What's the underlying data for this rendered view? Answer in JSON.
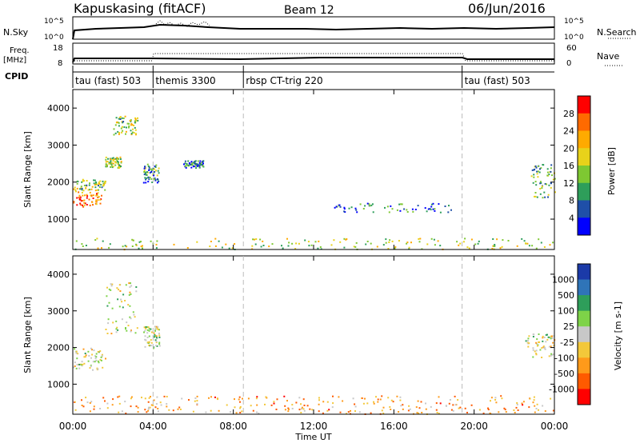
{
  "header": {
    "station": "Kapuskasing (fitACF)",
    "beam": "Beam 12",
    "date": "06/Jun/2016"
  },
  "left_labels": {
    "nsky": "N.Sky",
    "freq_line1": "Freq.",
    "freq_line2": "[MHz]",
    "cpid": "CPID"
  },
  "right_labels": {
    "nsearch": "N.Search",
    "nave": "Nave"
  },
  "noise_axis": {
    "left_ticks": [
      "10^5",
      "10^0"
    ],
    "right_ticks": [
      "10^5",
      "10^0"
    ]
  },
  "freq_axis": {
    "left_ticks": [
      "18",
      "8"
    ],
    "right_ticks": [
      "60",
      "0"
    ]
  },
  "cpid_segments": [
    {
      "label": "tau (fast) 503",
      "start_h": 0,
      "end_h": 4
    },
    {
      "label": "themis 3300",
      "start_h": 4,
      "end_h": 8.5
    },
    {
      "label": "rbsp CT-trig 220",
      "start_h": 8.5,
      "end_h": 19.4
    },
    {
      "label": "tau (fast) 503",
      "start_h": 19.4,
      "end_h": 24
    }
  ],
  "x_axis": {
    "label": "Time UT",
    "ticks": [
      "00:00",
      "04:00",
      "08:00",
      "12:00",
      "16:00",
      "20:00",
      "00:00"
    ]
  },
  "power_colorbar": {
    "label": "Power [dB]",
    "ticks": [
      "28",
      "24",
      "20",
      "16",
      "12",
      "8",
      "4"
    ],
    "colors": [
      "#ff0000",
      "#ff6a00",
      "#ffaa00",
      "#e8d21a",
      "#7ec832",
      "#2e9e5a",
      "#1f4fa8",
      "#0000ff"
    ]
  },
  "velocity_colorbar": {
    "label": "Velocity [m s-1]",
    "ticks": [
      "1000",
      "500",
      "100",
      "25",
      "-25",
      "-100",
      "-500",
      "-1000"
    ],
    "colors": [
      "#1b3aa8",
      "#2f74b8",
      "#2e9e5a",
      "#7ed348",
      "#c8c8c8",
      "#f3c83a",
      "#ff9a1a",
      "#ff5a00",
      "#ff0000"
    ]
  },
  "chart_data": [
    {
      "type": "heatmap",
      "title": "",
      "xlabel": "Time UT",
      "ylabel": "Slant Range [km]",
      "xlim": [
        0,
        24
      ],
      "ylim": [
        180,
        4500
      ],
      "yticks": [
        1000,
        2000,
        3000,
        4000
      ],
      "colorbar": "Power [dB]",
      "regions": [
        {
          "t0": 0.0,
          "t1": 1.4,
          "r0": 1350,
          "r1": 1800,
          "value_db": 24
        },
        {
          "t0": 0.0,
          "t1": 1.6,
          "r0": 1800,
          "r1": 2100,
          "value_db": 14
        },
        {
          "t0": 1.6,
          "t1": 2.4,
          "r0": 2400,
          "r1": 2700,
          "value_db": 16
        },
        {
          "t0": 2.0,
          "t1": 3.2,
          "r0": 3300,
          "r1": 3800,
          "value_db": 14
        },
        {
          "t0": 3.5,
          "t1": 4.3,
          "r0": 2000,
          "r1": 2500,
          "value_db": 10
        },
        {
          "t0": 5.5,
          "t1": 6.5,
          "r0": 2400,
          "r1": 2600,
          "value_db": 8
        },
        {
          "t0": 13.0,
          "t1": 19.0,
          "r0": 1200,
          "r1": 1450,
          "value_db": 8
        },
        {
          "t0": 22.8,
          "t1": 24.0,
          "r0": 1600,
          "r1": 2500,
          "value_db": 12
        },
        {
          "t0": 0.0,
          "t1": 24.0,
          "r0": 200,
          "r1": 500,
          "value_db": 16
        }
      ]
    },
    {
      "type": "heatmap",
      "title": "",
      "xlabel": "Time UT",
      "ylabel": "Slant Range [km]",
      "xlim": [
        0,
        24
      ],
      "ylim": [
        180,
        4500
      ],
      "yticks": [
        1000,
        2000,
        3000,
        4000
      ],
      "colorbar": "Velocity [m s-1]",
      "regions": [
        {
          "t0": 0.0,
          "t1": 1.6,
          "r0": 1400,
          "r1": 2000,
          "value_ms": 0
        },
        {
          "t0": 1.6,
          "t1": 3.2,
          "r0": 2400,
          "r1": 3800,
          "value_ms": 0
        },
        {
          "t0": 3.5,
          "t1": 4.3,
          "r0": 2000,
          "r1": 2600,
          "value_ms": 0
        },
        {
          "t0": 22.5,
          "t1": 24.0,
          "r0": 1700,
          "r1": 2400,
          "value_ms": 0
        },
        {
          "t0": 0.0,
          "t1": 24.0,
          "r0": 200,
          "r1": 700,
          "value_ms": -60
        }
      ]
    }
  ]
}
